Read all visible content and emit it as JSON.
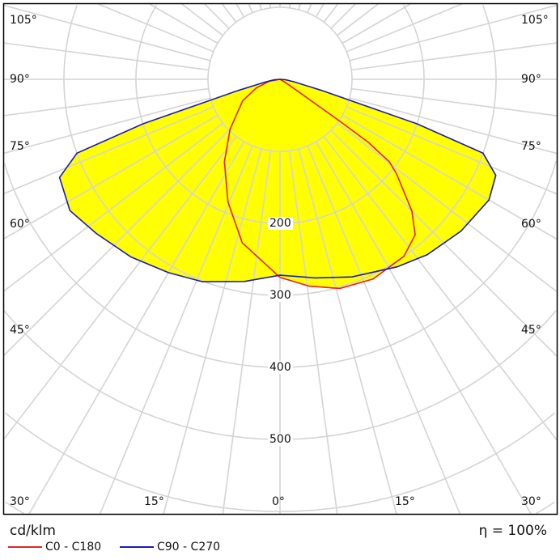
{
  "chart_data": {
    "type": "polar",
    "unit_label": "cd/klm",
    "efficiency_label": "η = 100%",
    "radial_ticks": [
      100,
      200,
      300,
      400,
      500,
      600,
      700
    ],
    "radial_tick_labels": [
      "200",
      "300",
      "400",
      "500"
    ],
    "radial_tick_label_values": [
      200,
      300,
      400,
      500
    ],
    "angle_step_deg": 7.5,
    "angle_labels": {
      "left": [
        "105°",
        "90°",
        "75°",
        "60°",
        "45°",
        "30°"
      ],
      "bottom": [
        "15°",
        "0°",
        "15°"
      ],
      "right": [
        "105°",
        "90°",
        "75°",
        "60°",
        "45°",
        "30°"
      ]
    },
    "fill_color": "#ffff00",
    "series": [
      {
        "name": "C0 - C180",
        "color": "#e8202a",
        "angles": [
          -90,
          -80,
          -70,
          -60,
          -45,
          -34,
          -23,
          -13,
          0,
          8,
          16,
          25,
          35,
          41,
          45,
          51,
          53,
          54.5,
          55,
          55.5,
          57,
          60,
          90
        ],
        "values": [
          0,
          15,
          35,
          60,
          98,
          138,
          185,
          233,
          275,
          290,
          302,
          306,
          300,
          286,
          259,
          208,
          190,
          150,
          100,
          50,
          19,
          8,
          0
        ]
      },
      {
        "name": "C90 - C270",
        "color": "#1a1ab4",
        "angles": [
          -90,
          -85,
          -80,
          -75,
          -72,
          -70,
          -66,
          -58,
          -50,
          -40,
          -30,
          -21,
          -10,
          0,
          10,
          20,
          32,
          40,
          50,
          60,
          66,
          70,
          72,
          75,
          80,
          85,
          90
        ],
        "values": [
          0,
          8,
          20,
          60,
          200,
          300,
          335,
          344,
          333,
          322,
          310,
          301,
          285,
          272,
          280,
          292,
          307,
          318,
          328,
          335,
          328,
          300,
          200,
          60,
          20,
          8,
          0
        ]
      }
    ]
  }
}
